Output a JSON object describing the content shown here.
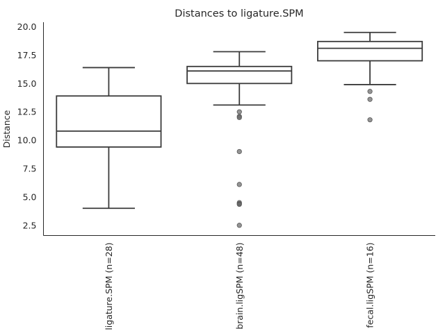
{
  "chart_data": {
    "type": "box",
    "title": "Distances to ligature.SPM",
    "xlabel": "",
    "ylabel": "Distance",
    "ylim": [
      1.6,
      20.4
    ],
    "yticks": [
      2.5,
      5.0,
      7.5,
      10.0,
      12.5,
      15.0,
      17.5,
      20.0
    ],
    "ytick_labels": [
      "2.5",
      "5.0",
      "7.5",
      "10.0",
      "12.5",
      "15.0",
      "17.5",
      "20.0"
    ],
    "grid": false,
    "categories": [
      "ligature.SPM (n=28)",
      "brain.ligSPM (n=48)",
      "fecal.ligSPM (n=16)"
    ],
    "boxes": [
      {
        "whisker_low": 4.0,
        "q1": 9.4,
        "median": 10.8,
        "q3": 13.9,
        "whisker_high": 16.4,
        "outliers": []
      },
      {
        "whisker_low": 13.1,
        "q1": 15.0,
        "median": 16.1,
        "q3": 16.5,
        "whisker_high": 17.8,
        "outliers": [
          12.5,
          12.1,
          12.0,
          9.0,
          6.1,
          4.5,
          4.4,
          4.35,
          2.5
        ]
      },
      {
        "whisker_low": 14.9,
        "q1": 17.0,
        "median": 18.1,
        "q3": 18.7,
        "whisker_high": 19.5,
        "outliers": [
          14.3,
          13.6,
          11.8
        ]
      }
    ]
  }
}
